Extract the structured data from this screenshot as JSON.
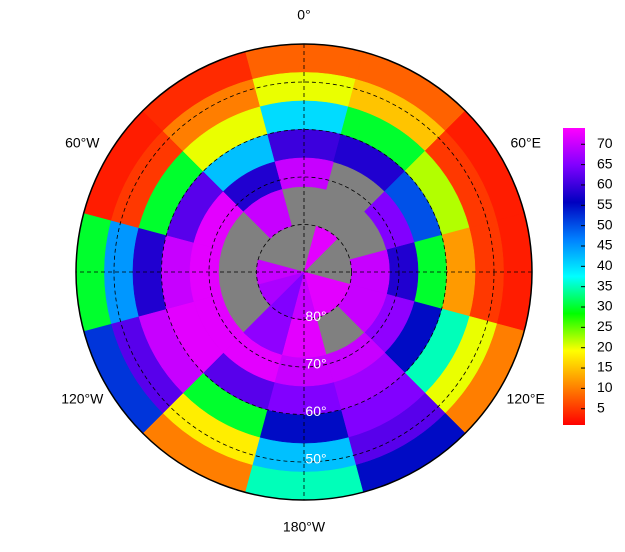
{
  "chart_data": {
    "type": "polar-heatmap",
    "latlim": [
      42,
      90
    ],
    "lat_bands": [
      42,
      48,
      54,
      60,
      66,
      72,
      80,
      90
    ],
    "lon_centers": [
      0,
      30,
      60,
      90,
      120,
      150,
      180,
      210,
      240,
      270,
      300,
      330
    ],
    "values": [
      [
        8,
        20,
        40,
        60,
        70,
        null,
        null
      ],
      [
        8,
        15,
        30,
        58,
        null,
        null,
        72
      ],
      [
        3,
        5,
        22,
        50,
        65,
        null,
        null
      ],
      [
        3,
        5,
        12,
        30,
        58,
        70,
        null
      ],
      [
        10,
        20,
        35,
        55,
        66,
        70,
        72
      ],
      [
        55,
        62,
        65,
        67,
        70,
        null,
        72
      ],
      [
        35,
        42,
        55,
        65,
        70,
        72,
        70
      ],
      [
        10,
        18,
        30,
        62,
        72,
        66,
        65
      ],
      [
        52,
        62,
        70,
        72,
        72,
        null,
        68
      ],
      [
        30,
        45,
        58,
        70,
        72,
        null,
        70
      ],
      [
        3,
        5,
        30,
        62,
        72,
        null,
        null
      ],
      [
        4,
        10,
        20,
        42,
        58,
        70,
        null
      ]
    ],
    "missing_color": "#808080",
    "colormap": [
      "#ff0000",
      "#ff8000",
      "#ffff00",
      "#00ff00",
      "#00ffff",
      "#0080ff",
      "#0000c0",
      "#8000ff",
      "#ff00ff"
    ],
    "clim": [
      1,
      74
    ],
    "colorbar_ticks": [
      5,
      10,
      15,
      20,
      25,
      30,
      35,
      40,
      45,
      50,
      55,
      60,
      65,
      70
    ],
    "lat_circles": [
      {
        "value": 80,
        "label": "80°"
      },
      {
        "value": 70,
        "label": "70°"
      },
      {
        "value": 60,
        "label": "60°"
      },
      {
        "value": 50,
        "label": "50°"
      }
    ],
    "lon_labels": [
      {
        "value": 0,
        "label": "0°"
      },
      {
        "value": 60,
        "label": "60°E"
      },
      {
        "value": 120,
        "label": "120°E"
      },
      {
        "value": 180,
        "label": "180°W"
      },
      {
        "value": -120,
        "label": "120°W"
      },
      {
        "value": -60,
        "label": "60°W"
      }
    ]
  }
}
